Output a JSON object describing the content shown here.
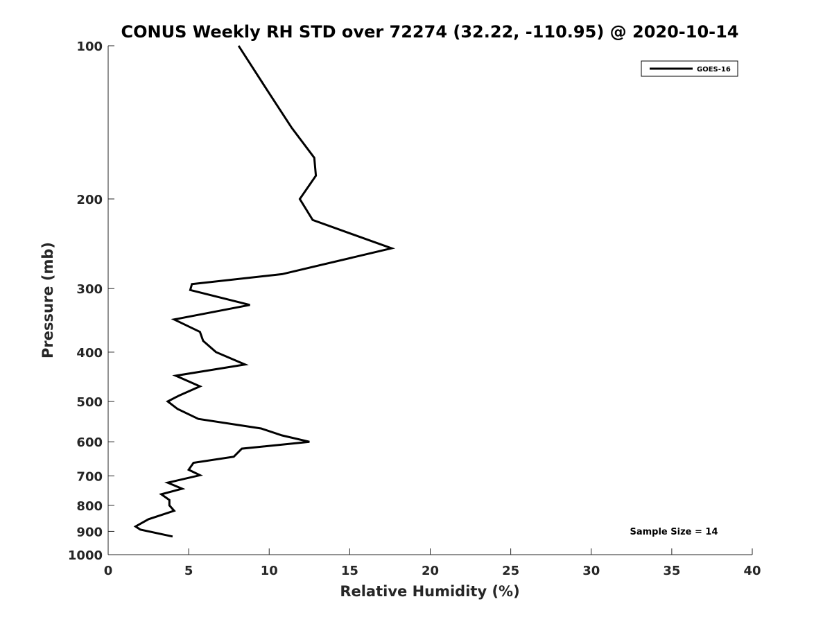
{
  "chart_data": {
    "type": "line",
    "title": "CONUS Weekly RH STD over 72274 (32.22, -110.95) @ 2020-10-14",
    "xlabel": "Relative Humidity (%)",
    "ylabel": "Pressure (mb)",
    "xlim": [
      0,
      40
    ],
    "ylim": [
      100,
      1000
    ],
    "y_scale": "log",
    "y_reversed": true,
    "x_ticks": [
      0,
      5,
      10,
      15,
      20,
      25,
      30,
      35,
      40
    ],
    "x_tick_labels": [
      "0",
      "5",
      "10",
      "15",
      "20",
      "25",
      "30",
      "35",
      "40"
    ],
    "y_ticks": [
      100,
      200,
      300,
      400,
      500,
      600,
      700,
      800,
      900,
      1000
    ],
    "y_tick_labels": [
      "100",
      "200",
      "300",
      "400",
      "500",
      "600",
      "700",
      "800",
      "900",
      "1000"
    ],
    "grid": false,
    "legend": {
      "position": "top-right",
      "entries": [
        "GOES-16"
      ]
    },
    "annotations": [
      "Sample Size = 14"
    ],
    "line_color": "#000000",
    "series": [
      {
        "name": "GOES-16",
        "x": [
          8.1,
          10.0,
          11.4,
          12.8,
          12.9,
          11.9,
          12.7,
          17.6,
          10.8,
          5.2,
          5.1,
          8.8,
          4.1,
          5.7,
          5.9,
          6.7,
          8.5,
          4.2,
          5.7,
          4.4,
          3.7,
          4.3,
          5.6,
          9.5,
          10.8,
          12.5,
          8.3,
          7.8,
          5.3,
          5.0,
          5.7,
          3.7,
          4.6,
          3.3,
          3.8,
          3.8,
          4.1,
          2.5,
          1.7,
          2.0,
          4.0
        ],
        "y": [
          100,
          124,
          145,
          166,
          180,
          200,
          220,
          250,
          281,
          294,
          302,
          323,
          345,
          365,
          380,
          400,
          423,
          445,
          467,
          487,
          500,
          517,
          541,
          565,
          583,
          600,
          619,
          642,
          660,
          681,
          698,
          722,
          742,
          761,
          781,
          800,
          820,
          852,
          880,
          893,
          921
        ]
      }
    ]
  }
}
